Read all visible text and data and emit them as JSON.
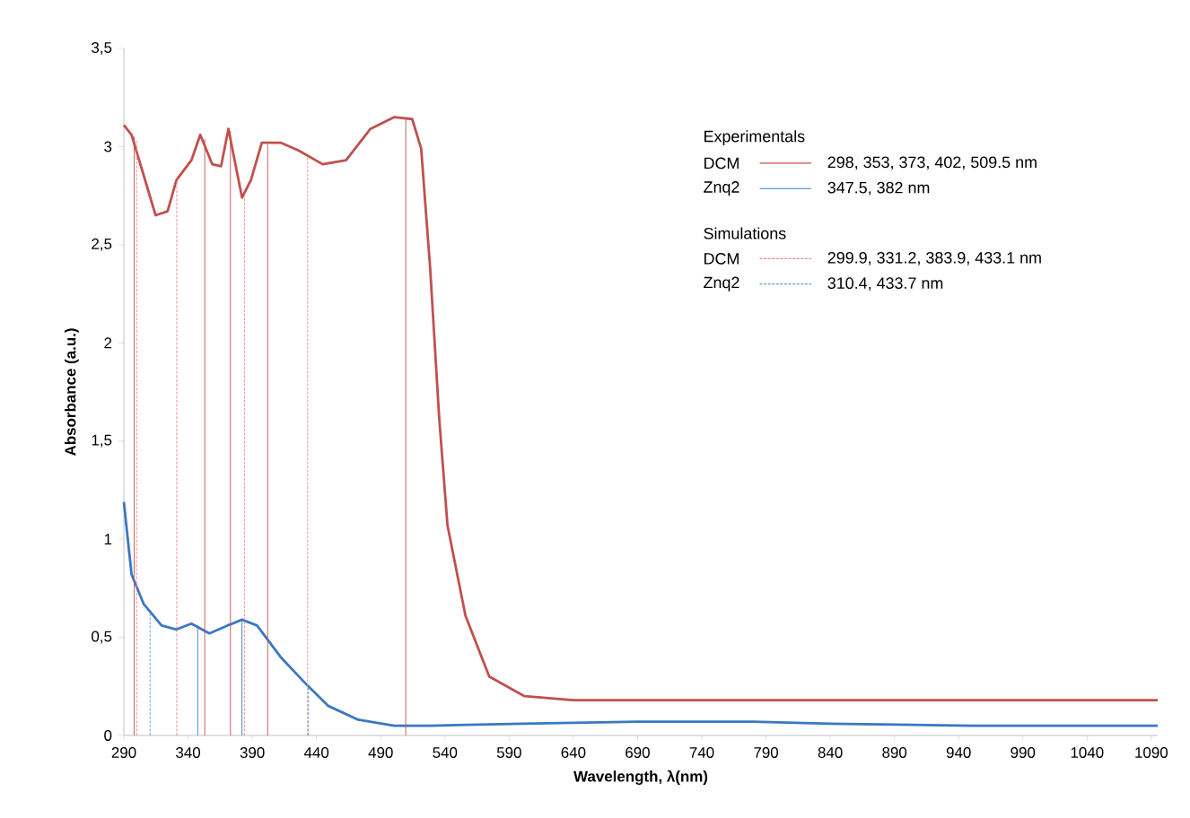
{
  "chart_data": {
    "type": "line",
    "xlabel": "Wavelength, λ(nm)",
    "ylabel": "Absorbance (a.u.)",
    "xlim": [
      290,
      1095
    ],
    "ylim": [
      0,
      3.5
    ],
    "xticks": [
      290,
      340,
      390,
      440,
      490,
      540,
      590,
      640,
      690,
      740,
      790,
      840,
      890,
      940,
      990,
      1040,
      1090
    ],
    "yticks": [
      0,
      {
        "value": 0.5,
        "label": "0,5"
      },
      1,
      {
        "value": 1.5,
        "label": "1,5"
      },
      2,
      {
        "value": 2.5,
        "label": "2,5"
      },
      3,
      {
        "value": 3.5,
        "label": "3,5"
      }
    ],
    "grid": false,
    "legend": "top right",
    "marker": "none",
    "annotations": [
      "Experimentals",
      "298, 353, 373, 402, 509.5 nm",
      "347.5, 382 nm",
      "Simulations",
      "299.9, 331.2, 383.9, 433.1 nm",
      "310.4, 433.7 nm"
    ],
    "series": [
      {
        "color": "#c0504d",
        "line_style": "solid",
        "x": [
          290,
          296,
          314.7,
          324,
          331,
          342.6,
          349.5,
          358.8,
          365.7,
          371.4,
          382,
          389,
          397.4,
          412,
          426,
          444.8,
          463,
          482,
          500.6,
          514.5,
          521.5,
          528.5,
          535.5,
          542,
          556,
          574.5,
          602,
          640,
          700,
          800,
          900,
          1000,
          1095
        ],
        "values": [
          3.11,
          3.06,
          2.65,
          2.67,
          2.83,
          2.93,
          3.06,
          2.91,
          2.9,
          3.09,
          2.74,
          2.83,
          3.02,
          3.02,
          2.98,
          2.91,
          2.93,
          3.09,
          3.15,
          3.14,
          2.99,
          2.38,
          1.62,
          1.07,
          0.61,
          0.3,
          0.2,
          0.18,
          0.18,
          0.18,
          0.18,
          0.18,
          0.18
        ]
      },
      {
        "color": "#3a78c2",
        "line_style": "solid",
        "x": [
          290,
          296,
          305.4,
          319.4,
          331,
          342.6,
          356.6,
          370.6,
          382,
          393.7,
          412,
          430.7,
          449.3,
          472.5,
          500.6,
          528.5,
          600,
          690,
          780,
          840,
          950,
          1095
        ],
        "values": [
          1.19,
          0.82,
          0.67,
          0.56,
          0.54,
          0.57,
          0.52,
          0.56,
          0.59,
          0.56,
          0.4,
          0.27,
          0.15,
          0.08,
          0.05,
          0.05,
          0.06,
          0.07,
          0.07,
          0.06,
          0.05,
          0.05
        ]
      },
      {
        "name": "DCM",
        "color": "#c0504d",
        "line_style": "solid",
        "x": [
          298,
          298,
          null,
          353,
          353,
          null,
          373,
          373,
          null,
          402,
          402,
          null,
          509.5,
          509.5
        ],
        "values": [
          0,
          3.05,
          null,
          0,
          3.04,
          null,
          0,
          3.08,
          null,
          0,
          3.01,
          null,
          0,
          3.14
        ]
      },
      {
        "name": "Znq2",
        "color": "#3a78c2",
        "line_style": "solid",
        "x": [
          347.5,
          347.5,
          null,
          382,
          382
        ],
        "values": [
          0,
          0.56,
          null,
          0,
          0.59
        ]
      },
      {
        "name": "DCM",
        "color": "#f08080",
        "line_style": "dashed",
        "x": [
          299.9,
          299.9,
          null,
          331.2,
          331.2,
          null,
          383.9,
          383.9,
          null,
          433.1,
          433.1
        ],
        "values": [
          0,
          3.03,
          null,
          0,
          2.83,
          null,
          0,
          2.76,
          null,
          0,
          2.95
        ]
      },
      {
        "name": "Znq2",
        "color": "#5b9bd5",
        "line_style": "dashed",
        "x": [
          310.4,
          310.4,
          null,
          433.7,
          433.7
        ],
        "values": [
          0,
          0.63,
          null,
          0,
          0.26
        ]
      }
    ]
  }
}
